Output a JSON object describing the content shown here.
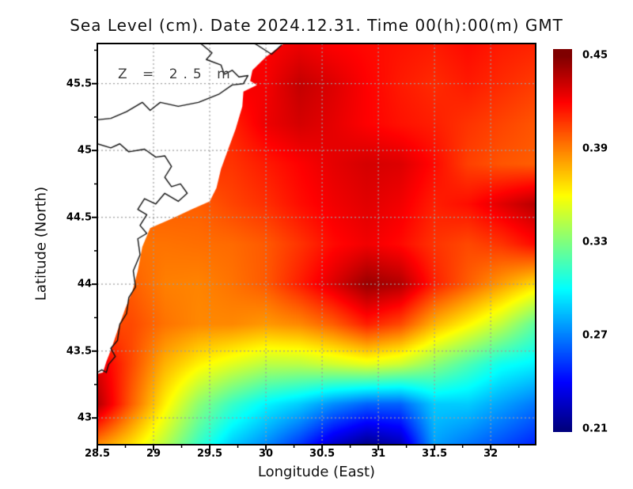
{
  "chart_data": {
    "type": "heatmap",
    "title": "Sea Level (cm). Date 2024.12.31. Time 00(h):00(m) GMT",
    "xlabel": "Longitude (East)",
    "ylabel": "Latitude (North)",
    "annotation": "Z = 2.5 m",
    "x_range": [
      28.5,
      32.4
    ],
    "y_range": [
      42.8,
      45.8
    ],
    "x_ticks": [
      28.5,
      29,
      29.5,
      30,
      30.5,
      31,
      31.5,
      32
    ],
    "y_ticks": [
      45.5,
      45,
      44.5,
      44,
      43.5,
      43
    ],
    "grid": true,
    "colorbar": {
      "min": 0.21,
      "max": 0.45,
      "ticks": [
        0.45,
        0.39,
        0.33,
        0.27,
        0.21
      ],
      "colormap": "jet",
      "position": "right"
    },
    "lon": [
      28.5,
      28.8,
      29.1,
      29.4,
      29.7,
      30.0,
      30.3,
      30.6,
      30.9,
      31.2,
      31.5,
      31.8,
      32.1,
      32.4
    ],
    "lat": [
      45.8,
      45.5,
      45.2,
      44.9,
      44.6,
      44.3,
      44.0,
      43.7,
      43.4,
      43.1,
      42.8
    ],
    "values": [
      [
        null,
        null,
        null,
        null,
        null,
        0.42,
        0.424,
        0.42,
        0.418,
        0.416,
        0.414,
        0.418,
        0.414,
        0.412
      ],
      [
        null,
        null,
        null,
        null,
        null,
        0.422,
        0.434,
        0.428,
        0.42,
        0.414,
        0.41,
        0.414,
        0.41,
        0.406
      ],
      [
        null,
        null,
        null,
        null,
        0.412,
        0.424,
        0.43,
        0.426,
        0.42,
        0.416,
        0.413,
        0.408,
        0.404,
        0.4
      ],
      [
        null,
        null,
        null,
        null,
        0.408,
        0.414,
        0.42,
        0.426,
        0.43,
        0.428,
        0.418,
        0.405,
        0.4,
        0.398
      ],
      [
        null,
        null,
        null,
        0.398,
        0.404,
        0.409,
        0.417,
        0.423,
        0.427,
        0.423,
        0.413,
        0.417,
        0.427,
        0.437
      ],
      [
        null,
        null,
        0.393,
        0.394,
        0.395,
        0.399,
        0.408,
        0.418,
        0.423,
        0.418,
        0.408,
        0.403,
        0.408,
        0.418
      ],
      [
        null,
        0.398,
        0.39,
        0.389,
        0.393,
        0.399,
        0.413,
        0.428,
        0.444,
        0.438,
        0.413,
        0.398,
        0.383,
        0.368
      ],
      [
        null,
        0.403,
        0.393,
        0.388,
        0.388,
        0.384,
        0.388,
        0.398,
        0.413,
        0.403,
        0.378,
        0.362,
        0.345,
        0.322
      ],
      [
        0.428,
        0.403,
        0.378,
        0.363,
        0.353,
        0.344,
        0.344,
        0.349,
        0.354,
        0.348,
        0.333,
        0.318,
        0.303,
        0.297
      ],
      [
        0.438,
        0.398,
        0.363,
        0.333,
        0.313,
        0.298,
        0.288,
        0.273,
        0.263,
        0.263,
        0.288,
        0.288,
        0.278,
        0.268
      ],
      [
        0.388,
        0.368,
        0.343,
        0.313,
        0.288,
        0.273,
        0.253,
        0.228,
        0.213,
        0.223,
        0.278,
        0.268,
        0.258,
        0.248
      ]
    ],
    "land_mask": [
      [
        30.16,
        45.8
      ],
      [
        30.0,
        45.7
      ],
      [
        29.88,
        45.6
      ],
      [
        29.86,
        45.52
      ],
      [
        29.92,
        45.49
      ],
      [
        29.8,
        45.44
      ],
      [
        29.79,
        45.33
      ],
      [
        29.73,
        45.16
      ],
      [
        29.66,
        45.0
      ],
      [
        29.6,
        44.86
      ],
      [
        29.56,
        44.72
      ],
      [
        29.5,
        44.62
      ],
      [
        29.34,
        44.56
      ],
      [
        29.16,
        44.49
      ],
      [
        28.97,
        44.42
      ],
      [
        28.9,
        44.28
      ],
      [
        28.86,
        44.1
      ],
      [
        28.81,
        43.94
      ],
      [
        28.75,
        43.82
      ],
      [
        28.69,
        43.68
      ],
      [
        28.63,
        43.53
      ],
      [
        28.58,
        43.42
      ],
      [
        28.55,
        43.34
      ],
      [
        28.5,
        43.33
      ],
      [
        28.5,
        45.8
      ]
    ],
    "coastlines": [
      [
        [
          29.42,
          45.8
        ],
        [
          29.52,
          45.73
        ],
        [
          29.47,
          45.68
        ],
        [
          29.6,
          45.64
        ],
        [
          29.63,
          45.57
        ],
        [
          29.7,
          45.6
        ],
        [
          29.76,
          45.55
        ],
        [
          29.84,
          45.56
        ],
        [
          29.8,
          45.5
        ],
        [
          29.7,
          45.49
        ],
        [
          29.58,
          45.42
        ],
        [
          29.4,
          45.36
        ],
        [
          29.22,
          45.33
        ],
        [
          29.06,
          45.36
        ],
        [
          28.97,
          45.3
        ],
        [
          28.9,
          45.36
        ],
        [
          28.76,
          45.29
        ],
        [
          28.62,
          45.24
        ],
        [
          28.5,
          45.23
        ]
      ],
      [
        [
          28.5,
          45.05
        ],
        [
          28.62,
          45.02
        ],
        [
          28.7,
          45.05
        ],
        [
          28.78,
          44.99
        ],
        [
          28.92,
          45.01
        ],
        [
          29.02,
          44.95
        ],
        [
          29.1,
          44.96
        ],
        [
          29.16,
          44.88
        ],
        [
          29.1,
          44.8
        ],
        [
          29.16,
          44.73
        ],
        [
          29.24,
          44.75
        ],
        [
          29.3,
          44.68
        ],
        [
          29.22,
          44.62
        ],
        [
          29.1,
          44.68
        ],
        [
          29.02,
          44.6
        ],
        [
          28.92,
          44.64
        ],
        [
          28.86,
          44.56
        ],
        [
          28.94,
          44.52
        ],
        [
          28.88,
          44.44
        ],
        [
          28.94,
          44.38
        ],
        [
          28.86,
          44.34
        ],
        [
          28.88,
          44.22
        ],
        [
          28.82,
          44.1
        ],
        [
          28.84,
          43.98
        ],
        [
          28.78,
          43.9
        ],
        [
          28.76,
          43.78
        ],
        [
          28.7,
          43.7
        ],
        [
          28.68,
          43.58
        ],
        [
          28.62,
          43.52
        ],
        [
          28.66,
          43.46
        ],
        [
          28.6,
          43.4
        ],
        [
          28.58,
          43.34
        ],
        [
          28.54,
          43.36
        ],
        [
          28.5,
          43.34
        ]
      ],
      [
        [
          29.9,
          45.8
        ],
        [
          30.05,
          45.72
        ],
        [
          30.14,
          45.79
        ]
      ]
    ],
    "style": {
      "background": "#ffffff",
      "frame_color": "#000000",
      "grid_color": "#9e9e9e",
      "land_color": "#ffffff",
      "coastline_color": "#111111",
      "text_color": "#000000"
    }
  }
}
